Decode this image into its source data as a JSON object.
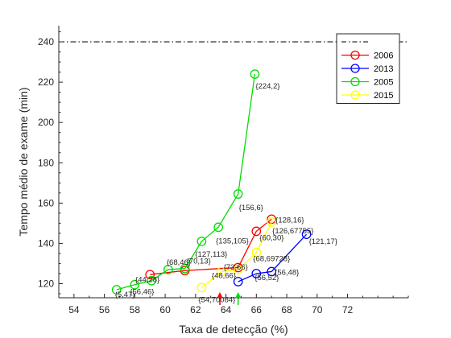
{
  "chart_data": {
    "type": "line",
    "title": "",
    "xlabel": "Taxa de detecção (%)",
    "ylabel": "Tempo médio de exame (min)",
    "xlim": [
      53,
      76
    ],
    "ylim": [
      113,
      248
    ],
    "xticks": [
      54,
      56,
      58,
      60,
      62,
      64,
      66,
      68,
      70,
      72
    ],
    "yticks": [
      120,
      140,
      160,
      180,
      200,
      220,
      240
    ],
    "grid": false,
    "legend_position": "top-right",
    "reference_line": {
      "y": 240,
      "style": "dash-dot",
      "color": "#000000"
    },
    "series": [
      {
        "name": "2006",
        "color": "#ff0000",
        "points": [
          {
            "x": 59.0,
            "y": 124.5,
            "label": ""
          },
          {
            "x": 61.3,
            "y": 126.5,
            "label": ""
          },
          {
            "x": 64.8,
            "y": 128.0,
            "label": ""
          },
          {
            "x": 66.0,
            "y": 146.0,
            "label": "{60,30}"
          },
          {
            "x": 67.0,
            "y": 152.0,
            "label": "{128,16}"
          }
        ]
      },
      {
        "name": "2013",
        "color": "#0000ff",
        "points": [
          {
            "x": 64.8,
            "y": 121.0,
            "label": ""
          },
          {
            "x": 66.0,
            "y": 125.0,
            "label": "{56,52}"
          },
          {
            "x": 67.0,
            "y": 126.0,
            "label": "{56,48}"
          },
          {
            "x": 69.3,
            "y": 144.5,
            "label": "{121,17}"
          }
        ]
      },
      {
        "name": "2005",
        "color": "#00dd00",
        "points": [
          {
            "x": 56.8,
            "y": 117.0,
            "label": "{5,47}"
          },
          {
            "x": 58.0,
            "y": 119.5,
            "label": "{56,46}"
          },
          {
            "x": 59.1,
            "y": 121.5,
            "label": "{44,28}"
          },
          {
            "x": 60.2,
            "y": 127.0,
            "label": "{68,46}"
          },
          {
            "x": 61.3,
            "y": 127.5,
            "label": "{70,13}"
          },
          {
            "x": 62.4,
            "y": 141.0,
            "label": "{127,113}"
          },
          {
            "x": 63.5,
            "y": 148.0,
            "label": "{135,105}"
          },
          {
            "x": 64.8,
            "y": 164.5,
            "label": "{156,6}"
          },
          {
            "x": 65.9,
            "y": 224.0,
            "label": "{224,2}"
          }
        ]
      },
      {
        "name": "2015",
        "color": "#ffff00",
        "points": [
          {
            "x": 62.4,
            "y": 118.0,
            "label": "{54,70084}"
          },
          {
            "x": 63.7,
            "y": 126.0,
            "label": "{48,66}"
          },
          {
            "x": 64.8,
            "y": 127.0,
            "label": "{73,66}"
          },
          {
            "x": 66.0,
            "y": 135.5,
            "label": "{68,69728}"
          },
          {
            "x": 67.0,
            "y": 150.5,
            "label": "{126,67755}"
          }
        ]
      }
    ],
    "markers": [
      {
        "x": 63.6,
        "color": "#ff0000",
        "shape": "up-arrow"
      },
      {
        "x": 64.8,
        "color": "#00dd00",
        "shape": "up-arrow"
      }
    ]
  }
}
